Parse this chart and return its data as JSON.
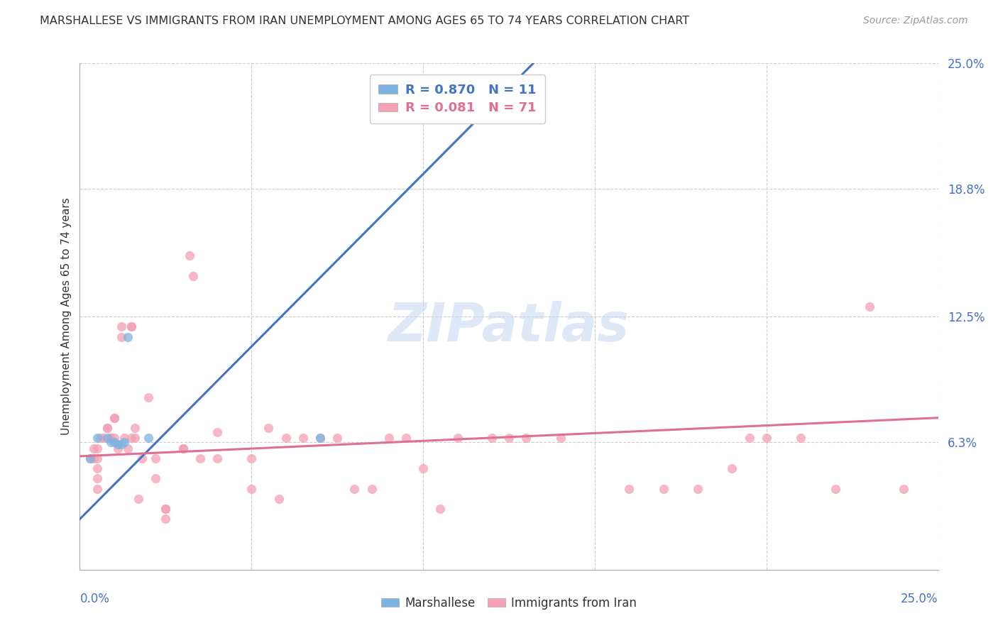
{
  "title": "MARSHALLESE VS IMMIGRANTS FROM IRAN UNEMPLOYMENT AMONG AGES 65 TO 74 YEARS CORRELATION CHART",
  "source": "Source: ZipAtlas.com",
  "ylabel": "Unemployment Among Ages 65 to 74 years",
  "xmin": 0.0,
  "xmax": 0.25,
  "ymin": 0.0,
  "ymax": 0.25,
  "ytick_labels": [
    "6.3%",
    "12.5%",
    "18.8%",
    "25.0%"
  ],
  "ytick_values": [
    0.063,
    0.125,
    0.188,
    0.25
  ],
  "legend_blue_label": "Marshallese",
  "legend_pink_label": "Immigrants from Iran",
  "legend_blue_text": "R = 0.870   N = 11",
  "legend_pink_text": "R = 0.081   N = 71",
  "marshallese_x": [
    0.003,
    0.005,
    0.008,
    0.009,
    0.01,
    0.011,
    0.012,
    0.013,
    0.014,
    0.02,
    0.07
  ],
  "marshallese_y": [
    0.055,
    0.065,
    0.065,
    0.063,
    0.063,
    0.062,
    0.062,
    0.063,
    0.115,
    0.065,
    0.065
  ],
  "iran_x": [
    0.003,
    0.004,
    0.004,
    0.005,
    0.005,
    0.005,
    0.005,
    0.005,
    0.006,
    0.007,
    0.008,
    0.008,
    0.009,
    0.009,
    0.01,
    0.01,
    0.01,
    0.011,
    0.012,
    0.012,
    0.013,
    0.014,
    0.015,
    0.015,
    0.015,
    0.016,
    0.016,
    0.017,
    0.018,
    0.02,
    0.022,
    0.022,
    0.025,
    0.025,
    0.025,
    0.03,
    0.03,
    0.032,
    0.033,
    0.035,
    0.04,
    0.04,
    0.05,
    0.05,
    0.055,
    0.058,
    0.06,
    0.065,
    0.07,
    0.075,
    0.08,
    0.085,
    0.09,
    0.095,
    0.1,
    0.105,
    0.11,
    0.12,
    0.125,
    0.13,
    0.14,
    0.16,
    0.17,
    0.18,
    0.19,
    0.195,
    0.2,
    0.21,
    0.22,
    0.23,
    0.24
  ],
  "iran_y": [
    0.055,
    0.06,
    0.055,
    0.06,
    0.055,
    0.05,
    0.045,
    0.04,
    0.065,
    0.065,
    0.07,
    0.07,
    0.065,
    0.065,
    0.075,
    0.075,
    0.065,
    0.06,
    0.115,
    0.12,
    0.065,
    0.06,
    0.12,
    0.12,
    0.065,
    0.07,
    0.065,
    0.035,
    0.055,
    0.085,
    0.055,
    0.045,
    0.03,
    0.03,
    0.025,
    0.06,
    0.06,
    0.155,
    0.145,
    0.055,
    0.068,
    0.055,
    0.055,
    0.04,
    0.07,
    0.035,
    0.065,
    0.065,
    0.065,
    0.065,
    0.04,
    0.04,
    0.065,
    0.065,
    0.05,
    0.03,
    0.065,
    0.065,
    0.065,
    0.065,
    0.065,
    0.04,
    0.04,
    0.04,
    0.05,
    0.065,
    0.065,
    0.065,
    0.04,
    0.13,
    0.04
  ],
  "blue_line_x": [
    0.0,
    0.135
  ],
  "blue_line_y": [
    0.025,
    0.255
  ],
  "pink_line_x": [
    0.0,
    0.25
  ],
  "pink_line_y": [
    0.056,
    0.075
  ],
  "blue_color": "#7db3e0",
  "pink_color": "#f4a0b5",
  "blue_line_color": "#4472c4",
  "pink_line_color": "#e07090",
  "bg_color": "#ffffff",
  "grid_color": "#cccccc",
  "marker_size": 90
}
